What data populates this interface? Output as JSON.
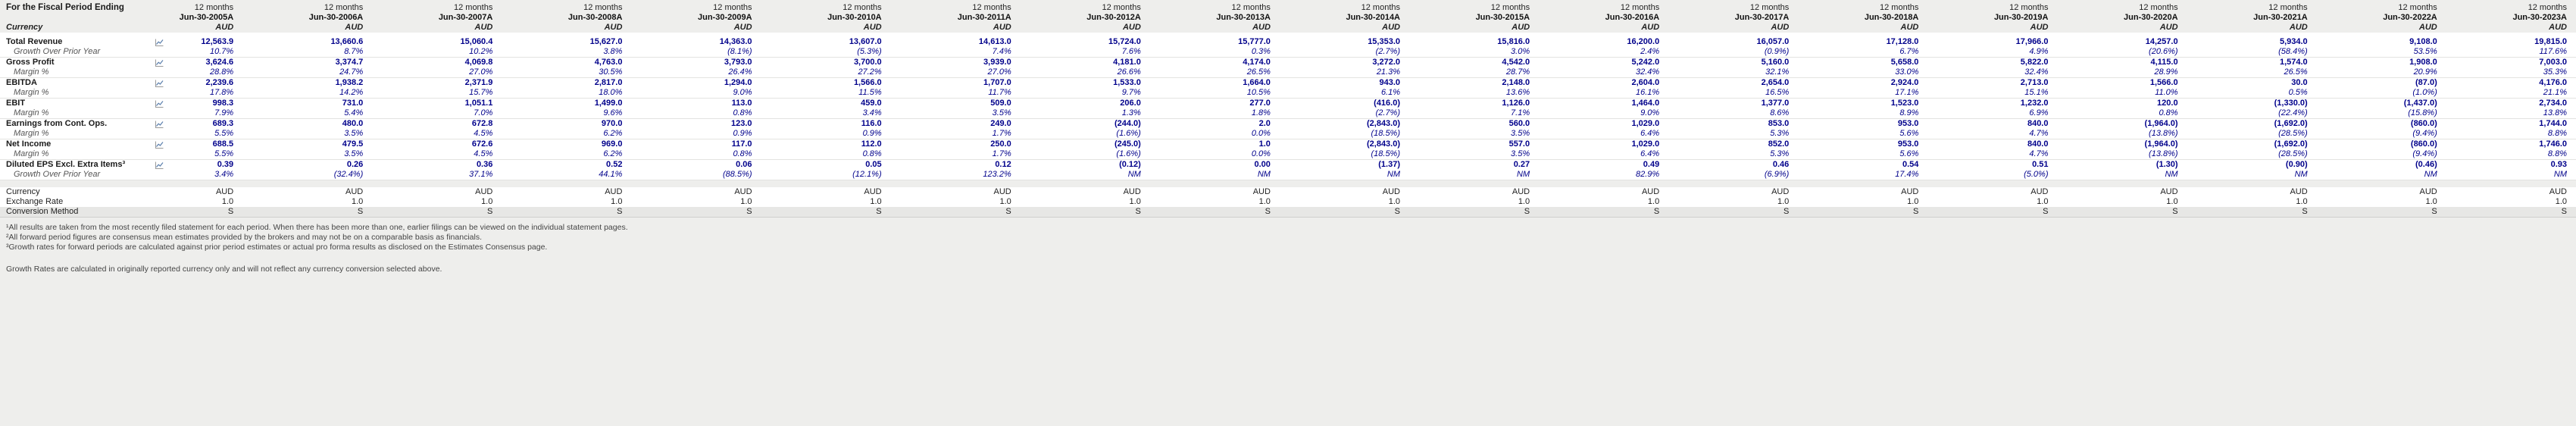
{
  "colors": {
    "value": "#00008b",
    "page_background": "#eeeeec"
  },
  "header": {
    "fiscal_period_label": "For the Fiscal Period Ending",
    "currency_row_label": "Currency",
    "period_prefix": "12 months",
    "column_currency": "AUD",
    "columns": [
      "Jun-30-2005A",
      "Jun-30-2006A",
      "Jun-30-2007A",
      "Jun-30-2008A",
      "Jun-30-2009A",
      "Jun-30-2010A",
      "Jun-30-2011A",
      "Jun-30-2012A",
      "Jun-30-2013A",
      "Jun-30-2014A",
      "Jun-30-2015A",
      "Jun-30-2016A",
      "Jun-30-2017A",
      "Jun-30-2018A",
      "Jun-30-2019A",
      "Jun-30-2020A",
      "Jun-30-2021A",
      "Jun-30-2022A",
      "Jun-30-2023A"
    ]
  },
  "rows": [
    {
      "label": "Total Revenue",
      "style": "main",
      "values": [
        "12,563.9",
        "13,660.6",
        "15,060.4",
        "15,627.0",
        "14,363.0",
        "13,607.0",
        "14,613.0",
        "15,724.0",
        "15,777.0",
        "15,353.0",
        "15,816.0",
        "16,200.0",
        "16,057.0",
        "17,128.0",
        "17,966.0",
        "14,257.0",
        "5,934.0",
        "9,108.0",
        "19,815.0"
      ]
    },
    {
      "label": "Growth Over Prior Year",
      "style": "sub",
      "values": [
        "10.7%",
        "8.7%",
        "10.2%",
        "3.8%",
        "(8.1%)",
        "(5.3%)",
        "7.4%",
        "7.6%",
        "0.3%",
        "(2.7%)",
        "3.0%",
        "2.4%",
        "(0.9%)",
        "6.7%",
        "4.9%",
        "(20.6%)",
        "(58.4%)",
        "53.5%",
        "117.6%"
      ]
    },
    {
      "label": "Gross Profit",
      "style": "main",
      "values": [
        "3,624.6",
        "3,374.7",
        "4,069.8",
        "4,763.0",
        "3,793.0",
        "3,700.0",
        "3,939.0",
        "4,181.0",
        "4,174.0",
        "3,272.0",
        "4,542.0",
        "5,242.0",
        "5,160.0",
        "5,658.0",
        "5,822.0",
        "4,115.0",
        "1,574.0",
        "1,908.0",
        "7,003.0"
      ]
    },
    {
      "label": "Margin %",
      "style": "sub",
      "values": [
        "28.8%",
        "24.7%",
        "27.0%",
        "30.5%",
        "26.4%",
        "27.2%",
        "27.0%",
        "26.6%",
        "26.5%",
        "21.3%",
        "28.7%",
        "32.4%",
        "32.1%",
        "33.0%",
        "32.4%",
        "28.9%",
        "26.5%",
        "20.9%",
        "35.3%"
      ]
    },
    {
      "label": "EBITDA",
      "style": "main",
      "values": [
        "2,239.6",
        "1,938.2",
        "2,371.9",
        "2,817.0",
        "1,294.0",
        "1,566.0",
        "1,707.0",
        "1,533.0",
        "1,664.0",
        "943.0",
        "2,148.0",
        "2,604.0",
        "2,654.0",
        "2,924.0",
        "2,713.0",
        "1,566.0",
        "30.0",
        "(87.0)",
        "4,176.0"
      ]
    },
    {
      "label": "Margin %",
      "style": "sub",
      "values": [
        "17.8%",
        "14.2%",
        "15.7%",
        "18.0%",
        "9.0%",
        "11.5%",
        "11.7%",
        "9.7%",
        "10.5%",
        "6.1%",
        "13.6%",
        "16.1%",
        "16.5%",
        "17.1%",
        "15.1%",
        "11.0%",
        "0.5%",
        "(1.0%)",
        "21.1%"
      ]
    },
    {
      "label": "EBIT",
      "style": "main",
      "values": [
        "998.3",
        "731.0",
        "1,051.1",
        "1,499.0",
        "113.0",
        "459.0",
        "509.0",
        "206.0",
        "277.0",
        "(416.0)",
        "1,126.0",
        "1,464.0",
        "1,377.0",
        "1,523.0",
        "1,232.0",
        "120.0",
        "(1,330.0)",
        "(1,437.0)",
        "2,734.0"
      ]
    },
    {
      "label": "Margin %",
      "style": "sub",
      "values": [
        "7.9%",
        "5.4%",
        "7.0%",
        "9.6%",
        "0.8%",
        "3.4%",
        "3.5%",
        "1.3%",
        "1.8%",
        "(2.7%)",
        "7.1%",
        "9.0%",
        "8.6%",
        "8.9%",
        "6.9%",
        "0.8%",
        "(22.4%)",
        "(15.8%)",
        "13.8%"
      ]
    },
    {
      "label": "Earnings from Cont. Ops.",
      "style": "main",
      "values": [
        "689.3",
        "480.0",
        "672.8",
        "970.0",
        "123.0",
        "116.0",
        "249.0",
        "(244.0)",
        "2.0",
        "(2,843.0)",
        "560.0",
        "1,029.0",
        "853.0",
        "953.0",
        "840.0",
        "(1,964.0)",
        "(1,692.0)",
        "(860.0)",
        "1,744.0"
      ]
    },
    {
      "label": "Margin %",
      "style": "sub",
      "values": [
        "5.5%",
        "3.5%",
        "4.5%",
        "6.2%",
        "0.9%",
        "0.9%",
        "1.7%",
        "(1.6%)",
        "0.0%",
        "(18.5%)",
        "3.5%",
        "6.4%",
        "5.3%",
        "5.6%",
        "4.7%",
        "(13.8%)",
        "(28.5%)",
        "(9.4%)",
        "8.8%"
      ]
    },
    {
      "label": "Net Income",
      "style": "main",
      "values": [
        "688.5",
        "479.5",
        "672.6",
        "969.0",
        "117.0",
        "112.0",
        "250.0",
        "(245.0)",
        "1.0",
        "(2,843.0)",
        "557.0",
        "1,029.0",
        "852.0",
        "953.0",
        "840.0",
        "(1,964.0)",
        "(1,692.0)",
        "(860.0)",
        "1,746.0"
      ]
    },
    {
      "label": "Margin %",
      "style": "sub",
      "values": [
        "5.5%",
        "3.5%",
        "4.5%",
        "6.2%",
        "0.8%",
        "0.8%",
        "1.7%",
        "(1.6%)",
        "0.0%",
        "(18.5%)",
        "3.5%",
        "6.4%",
        "5.3%",
        "5.6%",
        "4.7%",
        "(13.8%)",
        "(28.5%)",
        "(9.4%)",
        "8.8%"
      ]
    },
    {
      "label": "Diluted EPS Excl. Extra Items³",
      "style": "main",
      "values": [
        "0.39",
        "0.26",
        "0.36",
        "0.52",
        "0.06",
        "0.05",
        "0.12",
        "(0.12)",
        "0.00",
        "(1.37)",
        "0.27",
        "0.49",
        "0.46",
        "0.54",
        "0.51",
        "(1.30)",
        "(0.90)",
        "(0.46)",
        "0.93"
      ]
    },
    {
      "label": "Growth Over Prior Year",
      "style": "sub",
      "values": [
        "3.4%",
        "(32.4%)",
        "37.1%",
        "44.1%",
        "(88.5%)",
        "(12.1%)",
        "123.2%",
        "NM",
        "NM",
        "NM",
        "NM",
        "82.9%",
        "(6.9%)",
        "17.4%",
        "(5.0%)",
        "NM",
        "NM",
        "NM",
        "NM"
      ]
    }
  ],
  "meta_rows": [
    {
      "key": "currency",
      "label": "Currency",
      "values": [
        "AUD",
        "AUD",
        "AUD",
        "AUD",
        "AUD",
        "AUD",
        "AUD",
        "AUD",
        "AUD",
        "AUD",
        "AUD",
        "AUD",
        "AUD",
        "AUD",
        "AUD",
        "AUD",
        "AUD",
        "AUD",
        "AUD"
      ]
    },
    {
      "key": "exchange-rate",
      "label": "Exchange Rate",
      "values": [
        "1.0",
        "1.0",
        "1.0",
        "1.0",
        "1.0",
        "1.0",
        "1.0",
        "1.0",
        "1.0",
        "1.0",
        "1.0",
        "1.0",
        "1.0",
        "1.0",
        "1.0",
        "1.0",
        "1.0",
        "1.0",
        "1.0"
      ]
    },
    {
      "key": "conversion-method",
      "label": "Conversion Method",
      "values": [
        "S",
        "S",
        "S",
        "S",
        "S",
        "S",
        "S",
        "S",
        "S",
        "S",
        "S",
        "S",
        "S",
        "S",
        "S",
        "S",
        "S",
        "S",
        "S"
      ]
    }
  ],
  "footnotes": [
    "¹All results are taken from the most recently filed statement for each period. When there has been more than one, earlier filings can be viewed on the individual statement pages.",
    "²All forward period figures are consensus mean estimates provided by the brokers and may not be on a comparable basis as financials.",
    "³Growth rates for forward periods are calculated against prior period estimates or actual pro forma results as disclosed on the Estimates Consensus page."
  ],
  "footer_note": "Growth Rates are calculated in originally reported currency only and will not reflect any currency conversion selected above."
}
